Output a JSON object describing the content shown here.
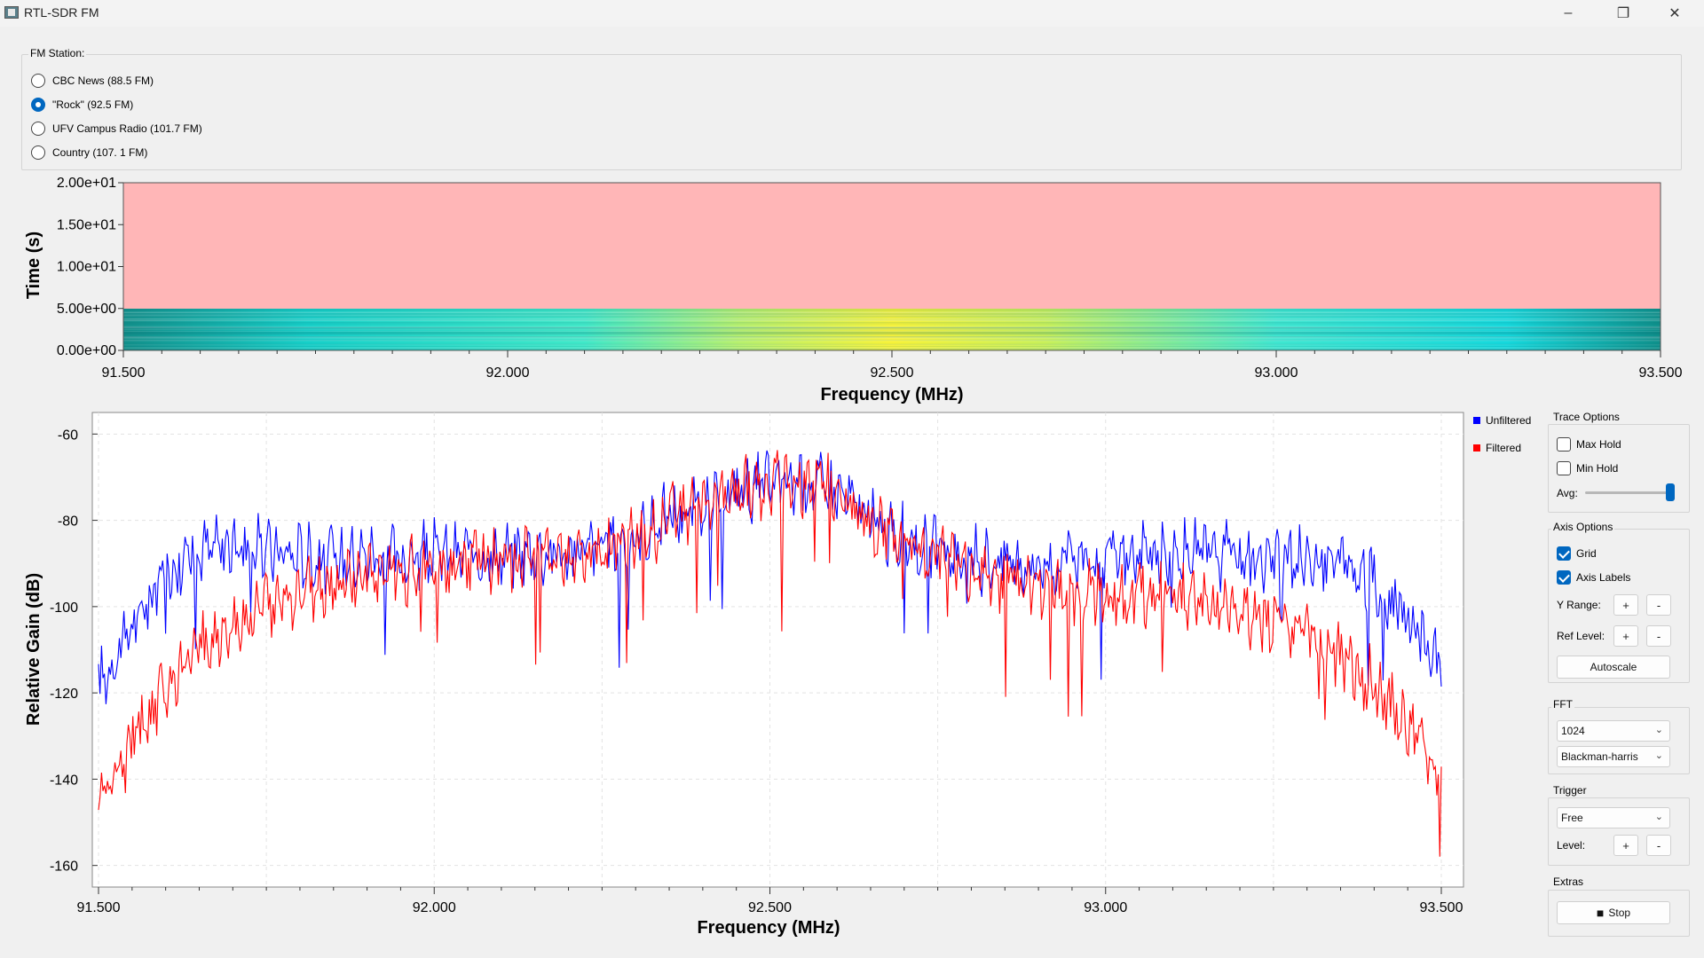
{
  "window": {
    "title": "RTL-SDR FM",
    "minimize_glyph": "–",
    "maximize_glyph": "❐",
    "close_glyph": "✕"
  },
  "station_group": {
    "title": "FM Station:",
    "stations": [
      {
        "label": "CBC News (88.5 FM)",
        "checked": false
      },
      {
        "label": "\"Rock\" (92.5 FM)",
        "checked": true
      },
      {
        "label": "UFV Campus Radio (101.7 FM)",
        "checked": false
      },
      {
        "label": "Country (107. 1 FM)",
        "checked": false
      }
    ]
  },
  "waterfall": {
    "ylabel": "Time (s)",
    "xlabel": "Frequency (MHz)",
    "yticks": [
      "0.00e+00",
      "5.00e+00",
      "1.00e+01",
      "1.50e+01",
      "2.00e+01"
    ],
    "xticks": [
      "91.500",
      "92.000",
      "92.500",
      "93.000",
      "93.500"
    ],
    "empty_color": "#ffb6b7"
  },
  "spectrum": {
    "ylabel": "Relative Gain (dB)",
    "xlabel": "Frequency (MHz)",
    "yticks": [
      "-60",
      "-80",
      "-100",
      "-120",
      "-140",
      "-160"
    ],
    "xticks": [
      "91.500",
      "92.000",
      "92.500",
      "93.000",
      "93.500"
    ],
    "legend": [
      {
        "label": "Unfiltered",
        "color": "#0000ff"
      },
      {
        "label": "Filtered",
        "color": "#ff0000"
      }
    ]
  },
  "chart_data": [
    {
      "type": "heatmap",
      "xlabel": "Frequency (MHz)",
      "ylabel": "Time (s)",
      "xlim": [
        91.5,
        93.5
      ],
      "ylim": [
        0,
        20
      ],
      "filled_time_range": [
        0,
        5
      ]
    },
    {
      "type": "line",
      "xlabel": "Frequency (MHz)",
      "ylabel": "Relative Gain (dB)",
      "xlim": [
        91.5,
        93.5
      ],
      "ylim": [
        -165,
        -55
      ],
      "grid": true,
      "legend": "top-right",
      "x": [
        91.5,
        91.55,
        91.6,
        91.65,
        91.7,
        91.75,
        91.8,
        91.85,
        91.9,
        91.95,
        92.0,
        92.05,
        92.1,
        92.15,
        92.2,
        92.25,
        92.3,
        92.35,
        92.4,
        92.45,
        92.5,
        92.55,
        92.6,
        92.65,
        92.7,
        92.75,
        92.8,
        92.85,
        92.9,
        92.95,
        93.0,
        93.05,
        93.1,
        93.15,
        93.2,
        93.25,
        93.3,
        93.35,
        93.4,
        93.45,
        93.5
      ],
      "series": [
        {
          "name": "Unfiltered",
          "color": "#0000ff",
          "values": [
            -118,
            -105,
            -92,
            -87,
            -86,
            -87,
            -88,
            -89,
            -88,
            -89,
            -88,
            -88,
            -88,
            -87,
            -88,
            -86,
            -84,
            -79,
            -77,
            -73,
            -72,
            -71,
            -73,
            -80,
            -84,
            -87,
            -89,
            -89,
            -90,
            -90,
            -89,
            -89,
            -88,
            -88,
            -88,
            -89,
            -89,
            -90,
            -94,
            -103,
            -113
          ]
        },
        {
          "name": "Filtered",
          "color": "#ff0000",
          "values": [
            -145,
            -132,
            -118,
            -110,
            -104,
            -100,
            -97,
            -95,
            -93,
            -92,
            -91,
            -90,
            -89,
            -88,
            -87,
            -86,
            -84,
            -80,
            -77,
            -73,
            -71,
            -71,
            -73,
            -81,
            -86,
            -89,
            -92,
            -94,
            -95,
            -96,
            -97,
            -97,
            -98,
            -99,
            -101,
            -104,
            -107,
            -112,
            -118,
            -128,
            -140
          ]
        }
      ]
    }
  ],
  "trace_options": {
    "title": "Trace Options",
    "max_hold": "Max Hold",
    "min_hold": "Min Hold",
    "avg_label": "Avg:",
    "avg_value": 1.0
  },
  "axis_options": {
    "title": "Axis Options",
    "grid": "Grid",
    "axis_labels": "Axis Labels",
    "y_range": "Y Range:",
    "ref_level": "Ref Level:",
    "plus": "+",
    "minus": "-",
    "autoscale": "Autoscale"
  },
  "fft": {
    "title": "FFT",
    "size": "1024",
    "window": "Blackman-harris"
  },
  "trigger": {
    "title": "Trigger",
    "mode": "Free",
    "level": "Level:",
    "plus": "+",
    "minus": "-"
  },
  "extras": {
    "title": "Extras",
    "stop_glyph": "■",
    "stop": "Stop"
  }
}
